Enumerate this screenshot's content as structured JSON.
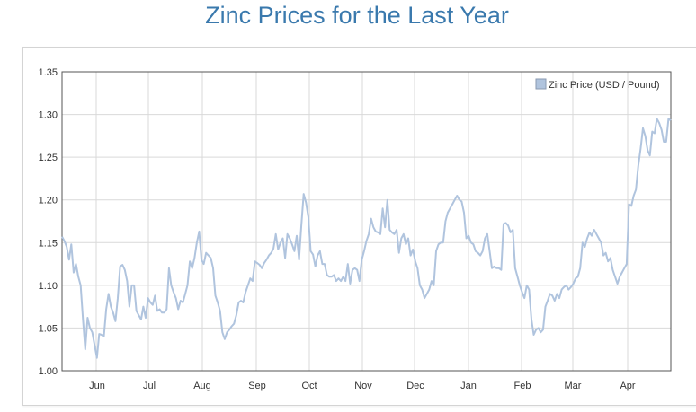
{
  "page": {
    "title": "Zinc Prices for the Last Year"
  },
  "chart_data": {
    "type": "line",
    "title": "Zinc Prices for the Last Year",
    "xlabel": "",
    "ylabel": "",
    "ylim": [
      1.0,
      1.35
    ],
    "y_ticks": [
      "1.00",
      "1.05",
      "1.10",
      "1.15",
      "1.20",
      "1.25",
      "1.30",
      "1.35"
    ],
    "x_ticks": [
      "Jun",
      "Jul",
      "Aug",
      "Sep",
      "Oct",
      "Nov",
      "Dec",
      "Jan",
      "Feb",
      "Mar",
      "Apr"
    ],
    "grid": true,
    "legend": {
      "position": "top-right",
      "entries": [
        "Zinc Price (USD / Pound)"
      ]
    },
    "series": [
      {
        "name": "Zinc Price (USD / Pound)",
        "color": "#b0c4de",
        "values": [
          1.157,
          1.152,
          1.145,
          1.13,
          1.148,
          1.115,
          1.125,
          1.11,
          1.1,
          1.06,
          1.025,
          1.062,
          1.05,
          1.045,
          1.03,
          1.015,
          1.043,
          1.042,
          1.04,
          1.072,
          1.09,
          1.075,
          1.068,
          1.058,
          1.085,
          1.122,
          1.124,
          1.118,
          1.105,
          1.075,
          1.1,
          1.1,
          1.07,
          1.065,
          1.06,
          1.075,
          1.062,
          1.085,
          1.08,
          1.077,
          1.088,
          1.07,
          1.072,
          1.068,
          1.068,
          1.072,
          1.12,
          1.1,
          1.092,
          1.085,
          1.072,
          1.082,
          1.08,
          1.09,
          1.1,
          1.128,
          1.12,
          1.132,
          1.15,
          1.163,
          1.13,
          1.125,
          1.138,
          1.135,
          1.132,
          1.12,
          1.088,
          1.08,
          1.07,
          1.045,
          1.037,
          1.045,
          1.048,
          1.052,
          1.055,
          1.065,
          1.08,
          1.082,
          1.08,
          1.092,
          1.1,
          1.108,
          1.105,
          1.128,
          1.126,
          1.124,
          1.12,
          1.126,
          1.13,
          1.135,
          1.138,
          1.143,
          1.16,
          1.142,
          1.15,
          1.155,
          1.132,
          1.16,
          1.155,
          1.148,
          1.14,
          1.158,
          1.13,
          1.17,
          1.207,
          1.197,
          1.18,
          1.14,
          1.136,
          1.122,
          1.135,
          1.14,
          1.125,
          1.125,
          1.112,
          1.11,
          1.11,
          1.112,
          1.105,
          1.108,
          1.105,
          1.11,
          1.105,
          1.125,
          1.102,
          1.118,
          1.12,
          1.118,
          1.105,
          1.13,
          1.14,
          1.152,
          1.16,
          1.178,
          1.168,
          1.163,
          1.162,
          1.16,
          1.19,
          1.168,
          1.2,
          1.165,
          1.162,
          1.16,
          1.165,
          1.138,
          1.155,
          1.16,
          1.148,
          1.155,
          1.135,
          1.142,
          1.128,
          1.12,
          1.1,
          1.095,
          1.085,
          1.09,
          1.095,
          1.105,
          1.1,
          1.14,
          1.148,
          1.15,
          1.15,
          1.175,
          1.185,
          1.19,
          1.195,
          1.2,
          1.205,
          1.2,
          1.198,
          1.185,
          1.155,
          1.158,
          1.15,
          1.148,
          1.14,
          1.138,
          1.135,
          1.14,
          1.155,
          1.16,
          1.14,
          1.12,
          1.122,
          1.12,
          1.12,
          1.118,
          1.172,
          1.173,
          1.17,
          1.162,
          1.165,
          1.12,
          1.11,
          1.1,
          1.092,
          1.085,
          1.1,
          1.095,
          1.06,
          1.042,
          1.048,
          1.05,
          1.045,
          1.048,
          1.075,
          1.082,
          1.09,
          1.088,
          1.082,
          1.09,
          1.085,
          1.095,
          1.098,
          1.1,
          1.095,
          1.098,
          1.102,
          1.108,
          1.11,
          1.12,
          1.15,
          1.145,
          1.155,
          1.162,
          1.158,
          1.165,
          1.16,
          1.155,
          1.15,
          1.135,
          1.138,
          1.128,
          1.132,
          1.118,
          1.11,
          1.102,
          1.11,
          1.115,
          1.12,
          1.125,
          1.195,
          1.193,
          1.205,
          1.212,
          1.24,
          1.26,
          1.284,
          1.275,
          1.258,
          1.252,
          1.28,
          1.278,
          1.295,
          1.29,
          1.282,
          1.268,
          1.268,
          1.295,
          1.293
        ]
      }
    ]
  }
}
